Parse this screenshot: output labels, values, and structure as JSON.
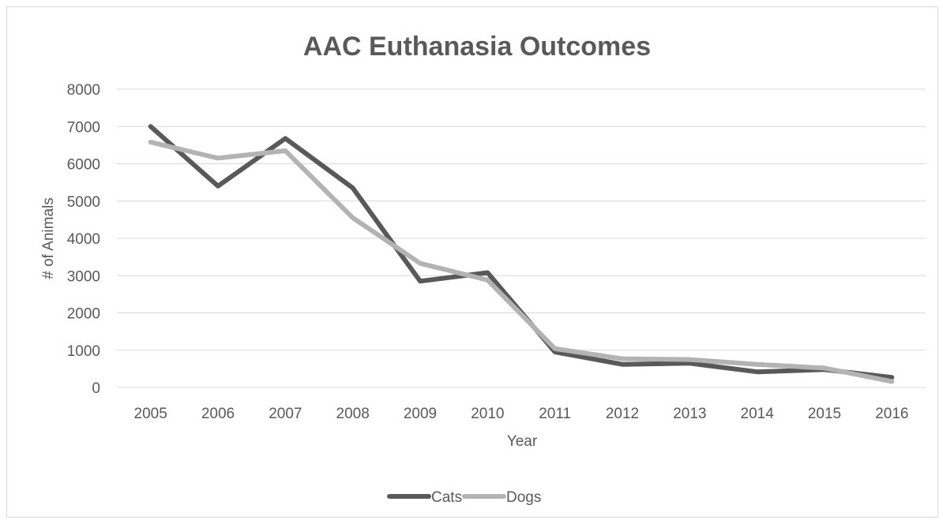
{
  "chart_data": {
    "type": "line",
    "title": "AAC Euthanasia Outcomes",
    "xlabel": "Year",
    "ylabel": "# of Animals",
    "categories": [
      "2005",
      "2006",
      "2007",
      "2008",
      "2009",
      "2010",
      "2011",
      "2012",
      "2013",
      "2014",
      "2015",
      "2016"
    ],
    "ylim": [
      0,
      8000
    ],
    "yticks": [
      "0",
      "1000",
      "2000",
      "3000",
      "4000",
      "5000",
      "6000",
      "7000",
      "8000"
    ],
    "grid": true,
    "legend_position": "bottom",
    "series": [
      {
        "name": "Cats",
        "color": "#595959",
        "values": [
          7000,
          5400,
          6680,
          5350,
          2850,
          3080,
          950,
          620,
          650,
          420,
          480,
          270
        ]
      },
      {
        "name": "Dogs",
        "color": "#b3b3b3",
        "values": [
          6580,
          6150,
          6350,
          4550,
          3330,
          2880,
          1040,
          770,
          750,
          620,
          520,
          160
        ]
      }
    ]
  }
}
